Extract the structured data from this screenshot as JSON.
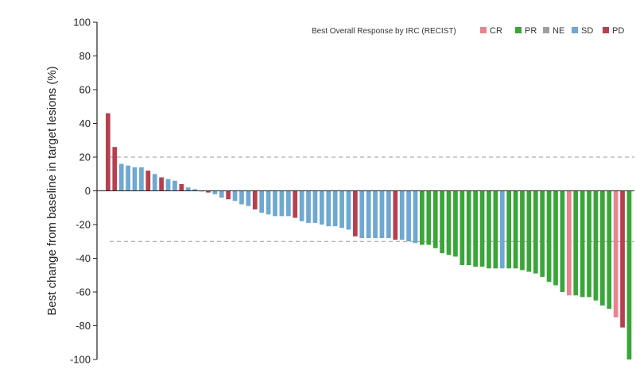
{
  "chart_data": {
    "type": "bar",
    "title": "",
    "xlabel": "",
    "ylabel": "Best change from baseline in target lesions (%)",
    "ylim": [
      -100,
      100
    ],
    "yticks": [
      100,
      80,
      60,
      40,
      20,
      0,
      -20,
      -40,
      -60,
      -80,
      -100
    ],
    "reference_lines": [
      20,
      -30
    ],
    "grid": false,
    "legend": {
      "title": "Best Overall Response by IRC (RECIST)",
      "placement": "top-right",
      "entries": [
        {
          "code": "CR",
          "label": "CR",
          "color": "#e8838f"
        },
        {
          "code": "PR",
          "label": "PR",
          "color": "#3aa63a"
        },
        {
          "code": "NE",
          "label": "NE",
          "color": "#9e9e9e"
        },
        {
          "code": "SD",
          "label": "SD",
          "color": "#6fa8d0"
        },
        {
          "code": "PD",
          "label": "PD",
          "color": "#b5404f"
        }
      ]
    },
    "bars": [
      {
        "value": 46,
        "response": "PD"
      },
      {
        "value": 26,
        "response": "PD"
      },
      {
        "value": 16,
        "response": "SD"
      },
      {
        "value": 15,
        "response": "SD"
      },
      {
        "value": 14,
        "response": "SD"
      },
      {
        "value": 14,
        "response": "SD"
      },
      {
        "value": 12,
        "response": "PD"
      },
      {
        "value": 10,
        "response": "SD"
      },
      {
        "value": 8,
        "response": "PD"
      },
      {
        "value": 7,
        "response": "SD"
      },
      {
        "value": 6,
        "response": "SD"
      },
      {
        "value": 4,
        "response": "PD"
      },
      {
        "value": 2,
        "response": "SD"
      },
      {
        "value": 1,
        "response": "SD"
      },
      {
        "value": 0,
        "response": "SD"
      },
      {
        "value": -1,
        "response": "PD"
      },
      {
        "value": -2,
        "response": "SD"
      },
      {
        "value": -4,
        "response": "SD"
      },
      {
        "value": -5,
        "response": "PD"
      },
      {
        "value": -6,
        "response": "SD"
      },
      {
        "value": -8,
        "response": "SD"
      },
      {
        "value": -9,
        "response": "SD"
      },
      {
        "value": -11,
        "response": "PD"
      },
      {
        "value": -13,
        "response": "SD"
      },
      {
        "value": -14,
        "response": "SD"
      },
      {
        "value": -15,
        "response": "SD"
      },
      {
        "value": -15,
        "response": "SD"
      },
      {
        "value": -15,
        "response": "SD"
      },
      {
        "value": -16,
        "response": "PD"
      },
      {
        "value": -18,
        "response": "SD"
      },
      {
        "value": -19,
        "response": "SD"
      },
      {
        "value": -19,
        "response": "SD"
      },
      {
        "value": -20,
        "response": "SD"
      },
      {
        "value": -21,
        "response": "SD"
      },
      {
        "value": -21,
        "response": "SD"
      },
      {
        "value": -22,
        "response": "SD"
      },
      {
        "value": -23,
        "response": "SD"
      },
      {
        "value": -27,
        "response": "PD"
      },
      {
        "value": -28,
        "response": "SD"
      },
      {
        "value": -28,
        "response": "SD"
      },
      {
        "value": -28,
        "response": "SD"
      },
      {
        "value": -28,
        "response": "SD"
      },
      {
        "value": -28,
        "response": "SD"
      },
      {
        "value": -29,
        "response": "PD"
      },
      {
        "value": -29,
        "response": "SD"
      },
      {
        "value": -30,
        "response": "SD"
      },
      {
        "value": -31,
        "response": "SD"
      },
      {
        "value": -32,
        "response": "PR"
      },
      {
        "value": -32,
        "response": "PR"
      },
      {
        "value": -34,
        "response": "PR"
      },
      {
        "value": -37,
        "response": "PR"
      },
      {
        "value": -38,
        "response": "PR"
      },
      {
        "value": -39,
        "response": "PR"
      },
      {
        "value": -44,
        "response": "PR"
      },
      {
        "value": -44,
        "response": "PR"
      },
      {
        "value": -45,
        "response": "PR"
      },
      {
        "value": -45,
        "response": "PR"
      },
      {
        "value": -46,
        "response": "PR"
      },
      {
        "value": -46,
        "response": "PR"
      },
      {
        "value": -46,
        "response": "SD"
      },
      {
        "value": -46,
        "response": "PR"
      },
      {
        "value": -46,
        "response": "PR"
      },
      {
        "value": -47,
        "response": "PR"
      },
      {
        "value": -48,
        "response": "PR"
      },
      {
        "value": -49,
        "response": "PR"
      },
      {
        "value": -51,
        "response": "PR"
      },
      {
        "value": -54,
        "response": "PR"
      },
      {
        "value": -56,
        "response": "PR"
      },
      {
        "value": -60,
        "response": "PR"
      },
      {
        "value": -62,
        "response": "CR"
      },
      {
        "value": -62,
        "response": "PR"
      },
      {
        "value": -63,
        "response": "PR"
      },
      {
        "value": -63,
        "response": "PR"
      },
      {
        "value": -65,
        "response": "PR"
      },
      {
        "value": -68,
        "response": "PR"
      },
      {
        "value": -70,
        "response": "PR"
      },
      {
        "value": -75,
        "response": "CR"
      },
      {
        "value": -81,
        "response": "PD"
      },
      {
        "value": -100,
        "response": "PR"
      }
    ]
  }
}
